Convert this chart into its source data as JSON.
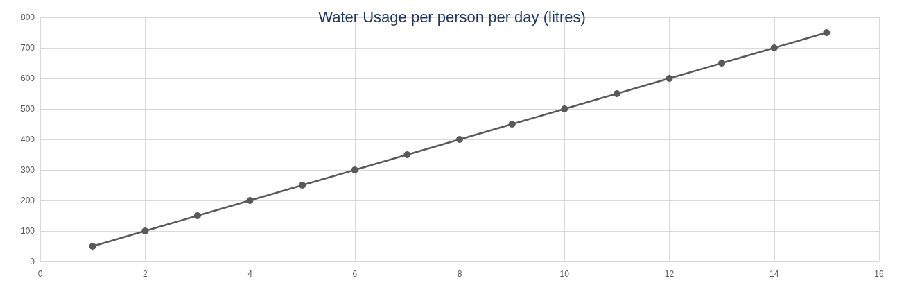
{
  "chart_data": {
    "type": "line",
    "title": "Water Usage per person per day (litres)",
    "x": [
      1,
      2,
      3,
      4,
      5,
      6,
      7,
      8,
      9,
      10,
      11,
      12,
      13,
      14,
      15
    ],
    "series": [
      {
        "color": "#595959",
        "values": [
          50,
          100,
          150,
          200,
          250,
          300,
          350,
          400,
          450,
          500,
          550,
          600,
          650,
          700,
          750
        ]
      }
    ],
    "xlim": [
      0,
      16
    ],
    "xticks": [
      0,
      2,
      4,
      6,
      8,
      10,
      12,
      14,
      16
    ],
    "ylim": [
      0,
      800
    ],
    "yticks": [
      0,
      100,
      200,
      300,
      400,
      500,
      600,
      700,
      800
    ],
    "grid": true,
    "marker": "circle",
    "line_style": "solid"
  }
}
